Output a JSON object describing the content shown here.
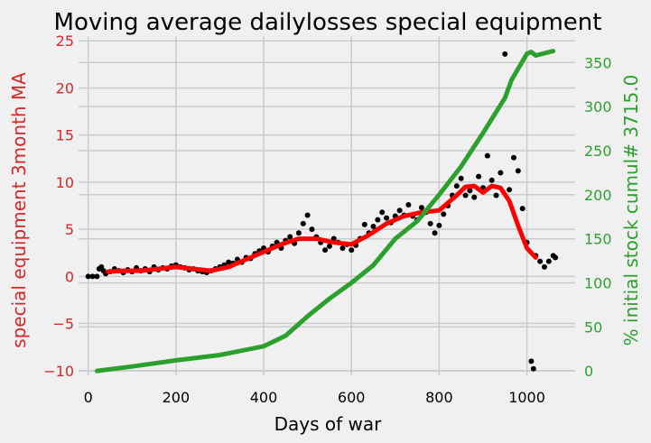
{
  "chart_data": {
    "type": "line",
    "title": "Moving average dailylosses special equipment",
    "xlabel": "Days of war",
    "ylabel_left": "special equipment 3month MA",
    "ylabel_right": "% initial stock cumul# 3715.0",
    "x_ticks": [
      "0",
      "200",
      "400",
      "600",
      "800",
      "1000"
    ],
    "y_left_ticks": [
      "−10",
      "−5",
      "0",
      "5",
      "10",
      "15",
      "20",
      "25"
    ],
    "y_right_ticks": [
      "0",
      "50",
      "100",
      "150",
      "200",
      "250",
      "300",
      "350"
    ],
    "xlim": [
      -22,
      1110
    ],
    "ylim_left": [
      -10.5,
      25.5
    ],
    "ylim_right": [
      -5,
      380
    ],
    "grid": true,
    "colors": {
      "left_axis": "#d62728",
      "right_axis": "#2ca02c",
      "scatter": "#000000",
      "ma_line": "#ff0000",
      "cumulative_line": "#2ca02c",
      "background": "#f0f0f0",
      "grid": "#cbcbcb"
    },
    "series": [
      {
        "kind": "scatter",
        "axis": "left",
        "points": [
          [
            0,
            0
          ],
          [
            10,
            0
          ],
          [
            20,
            0
          ],
          [
            25,
            0.8
          ],
          [
            30,
            1.0
          ],
          [
            35,
            0.6
          ],
          [
            40,
            0.3
          ],
          [
            50,
            0.5
          ],
          [
            60,
            0.8
          ],
          [
            70,
            0.6
          ],
          [
            80,
            0.4
          ],
          [
            90,
            0.7
          ],
          [
            100,
            0.5
          ],
          [
            110,
            0.9
          ],
          [
            120,
            0.6
          ],
          [
            130,
            0.8
          ],
          [
            140,
            0.5
          ],
          [
            150,
            1.0
          ],
          [
            160,
            0.7
          ],
          [
            170,
            0.9
          ],
          [
            180,
            0.8
          ],
          [
            190,
            1.1
          ],
          [
            200,
            1.2
          ],
          [
            210,
            1.0
          ],
          [
            220,
            0.9
          ],
          [
            230,
            0.7
          ],
          [
            240,
            0.8
          ],
          [
            250,
            0.6
          ],
          [
            260,
            0.5
          ],
          [
            270,
            0.4
          ],
          [
            280,
            0.6
          ],
          [
            290,
            0.8
          ],
          [
            300,
            1.0
          ],
          [
            310,
            1.2
          ],
          [
            320,
            1.5
          ],
          [
            330,
            1.4
          ],
          [
            340,
            1.8
          ],
          [
            350,
            1.5
          ],
          [
            360,
            2.0
          ],
          [
            370,
            1.9
          ],
          [
            380,
            2.4
          ],
          [
            390,
            2.7
          ],
          [
            400,
            3.0
          ],
          [
            410,
            2.6
          ],
          [
            420,
            3.2
          ],
          [
            430,
            3.6
          ],
          [
            440,
            3.0
          ],
          [
            450,
            3.8
          ],
          [
            460,
            4.2
          ],
          [
            470,
            3.5
          ],
          [
            480,
            4.6
          ],
          [
            490,
            5.6
          ],
          [
            500,
            6.5
          ],
          [
            510,
            5.0
          ],
          [
            520,
            4.2
          ],
          [
            530,
            3.6
          ],
          [
            540,
            2.8
          ],
          [
            550,
            3.2
          ],
          [
            560,
            4.0
          ],
          [
            570,
            3.6
          ],
          [
            580,
            3.0
          ],
          [
            590,
            3.4
          ],
          [
            600,
            2.8
          ],
          [
            610,
            3.3
          ],
          [
            620,
            4.0
          ],
          [
            630,
            5.5
          ],
          [
            640,
            4.6
          ],
          [
            650,
            5.3
          ],
          [
            660,
            6.0
          ],
          [
            670,
            6.8
          ],
          [
            680,
            6.2
          ],
          [
            690,
            5.7
          ],
          [
            700,
            6.4
          ],
          [
            710,
            7.0
          ],
          [
            720,
            6.5
          ],
          [
            730,
            7.6
          ],
          [
            740,
            6.4
          ],
          [
            750,
            6.0
          ],
          [
            760,
            7.3
          ],
          [
            770,
            6.8
          ],
          [
            780,
            5.6
          ],
          [
            790,
            4.6
          ],
          [
            800,
            5.4
          ],
          [
            810,
            6.6
          ],
          [
            820,
            7.5
          ],
          [
            830,
            8.6
          ],
          [
            840,
            9.6
          ],
          [
            850,
            10.4
          ],
          [
            860,
            8.6
          ],
          [
            870,
            9.1
          ],
          [
            880,
            8.4
          ],
          [
            890,
            10.6
          ],
          [
            900,
            9.4
          ],
          [
            910,
            12.8
          ],
          [
            920,
            10.2
          ],
          [
            930,
            8.6
          ],
          [
            940,
            11.0
          ],
          [
            950,
            23.6
          ],
          [
            960,
            9.2
          ],
          [
            970,
            12.6
          ],
          [
            980,
            11.2
          ],
          [
            990,
            7.2
          ],
          [
            1000,
            3.6
          ],
          [
            1010,
            -9.0
          ],
          [
            1015,
            -9.8
          ],
          [
            1020,
            2.2
          ],
          [
            1030,
            1.6
          ],
          [
            1040,
            1.0
          ],
          [
            1050,
            1.6
          ],
          [
            1060,
            2.2
          ],
          [
            1065,
            2.0
          ]
        ]
      },
      {
        "kind": "line",
        "axis": "left",
        "points": [
          [
            45,
            0.5
          ],
          [
            80,
            0.6
          ],
          [
            120,
            0.6
          ],
          [
            160,
            0.8
          ],
          [
            200,
            1.0
          ],
          [
            240,
            0.8
          ],
          [
            280,
            0.6
          ],
          [
            320,
            1.0
          ],
          [
            360,
            1.8
          ],
          [
            400,
            2.6
          ],
          [
            440,
            3.4
          ],
          [
            480,
            4.0
          ],
          [
            520,
            4.0
          ],
          [
            560,
            3.6
          ],
          [
            600,
            3.4
          ],
          [
            640,
            4.4
          ],
          [
            680,
            5.6
          ],
          [
            720,
            6.4
          ],
          [
            760,
            6.8
          ],
          [
            800,
            7.0
          ],
          [
            840,
            8.6
          ],
          [
            860,
            9.5
          ],
          [
            880,
            9.6
          ],
          [
            900,
            8.9
          ],
          [
            920,
            9.6
          ],
          [
            940,
            9.4
          ],
          [
            960,
            8.0
          ],
          [
            980,
            5.4
          ],
          [
            1000,
            3.0
          ],
          [
            1020,
            2.0
          ]
        ]
      },
      {
        "kind": "line",
        "axis": "right",
        "points": [
          [
            20,
            0
          ],
          [
            100,
            5
          ],
          [
            200,
            12
          ],
          [
            300,
            18
          ],
          [
            400,
            28
          ],
          [
            450,
            40
          ],
          [
            500,
            62
          ],
          [
            550,
            82
          ],
          [
            600,
            100
          ],
          [
            650,
            120
          ],
          [
            700,
            150
          ],
          [
            750,
            170
          ],
          [
            800,
            200
          ],
          [
            850,
            232
          ],
          [
            900,
            270
          ],
          [
            950,
            310
          ],
          [
            965,
            330
          ],
          [
            1000,
            360
          ],
          [
            1010,
            362
          ],
          [
            1020,
            358
          ],
          [
            1060,
            363
          ]
        ]
      }
    ]
  }
}
